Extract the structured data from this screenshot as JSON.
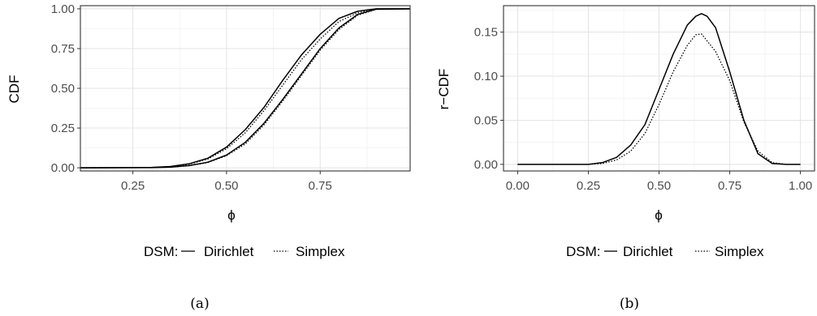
{
  "chart_data": [
    {
      "type": "line",
      "panel_label": "(a)",
      "xlabel": "ϕ",
      "ylabel": "CDF",
      "xlim": [
        0.11,
        0.99
      ],
      "ylim": [
        -0.02,
        1.02
      ],
      "x_ticks": [
        "0.25",
        "0.50",
        "0.75"
      ],
      "x_tick_values": [
        0.25,
        0.5,
        0.75
      ],
      "y_ticks": [
        "0.00",
        "0.25",
        "0.50",
        "0.75",
        "1.00"
      ],
      "y_tick_values": [
        0,
        0.25,
        0.5,
        0.75,
        1.0
      ],
      "grid": true,
      "legend": {
        "title": "DSM:",
        "position": "bottom",
        "entries": [
          "Dirichlet",
          "Simplex"
        ]
      },
      "series": [
        {
          "name": "Dirichlet",
          "style": "solid",
          "x": [
            0.11,
            0.3,
            0.35,
            0.4,
            0.45,
            0.5,
            0.55,
            0.6,
            0.65,
            0.7,
            0.75,
            0.8,
            0.85,
            0.9,
            0.99
          ],
          "y": [
            0.0,
            0.002,
            0.008,
            0.025,
            0.06,
            0.13,
            0.24,
            0.38,
            0.55,
            0.71,
            0.84,
            0.94,
            0.985,
            1.0,
            1.0
          ]
        },
        {
          "name": "Dirichlet",
          "style": "solid",
          "x": [
            0.11,
            0.3,
            0.35,
            0.4,
            0.45,
            0.5,
            0.55,
            0.6,
            0.65,
            0.7,
            0.75,
            0.8,
            0.85,
            0.9,
            0.99
          ],
          "y": [
            0.0,
            0.001,
            0.004,
            0.014,
            0.035,
            0.08,
            0.16,
            0.28,
            0.43,
            0.59,
            0.75,
            0.88,
            0.965,
            0.998,
            1.0
          ]
        },
        {
          "name": "Simplex",
          "style": "dotted",
          "x": [
            0.11,
            0.3,
            0.35,
            0.4,
            0.45,
            0.5,
            0.55,
            0.6,
            0.65,
            0.7,
            0.75,
            0.8,
            0.85,
            0.9,
            0.99
          ],
          "y": [
            0.0,
            0.002,
            0.007,
            0.022,
            0.055,
            0.12,
            0.22,
            0.36,
            0.52,
            0.68,
            0.81,
            0.92,
            0.975,
            0.999,
            1.0
          ]
        },
        {
          "name": "Simplex",
          "style": "dotted",
          "x": [
            0.11,
            0.3,
            0.35,
            0.4,
            0.45,
            0.5,
            0.55,
            0.6,
            0.65,
            0.7,
            0.75,
            0.8,
            0.85,
            0.9,
            0.99
          ],
          "y": [
            0.0,
            0.001,
            0.004,
            0.013,
            0.033,
            0.076,
            0.15,
            0.27,
            0.42,
            0.58,
            0.74,
            0.87,
            0.96,
            0.997,
            1.0
          ]
        }
      ]
    },
    {
      "type": "line",
      "panel_label": "(b)",
      "xlabel": "ϕ",
      "ylabel": "r−CDF",
      "xlim": [
        -0.05,
        1.05
      ],
      "ylim": [
        -0.0075,
        0.18
      ],
      "x_ticks": [
        "0.00",
        "0.25",
        "0.50",
        "0.75",
        "1.00"
      ],
      "x_tick_values": [
        0,
        0.25,
        0.5,
        0.75,
        1.0
      ],
      "y_ticks": [
        "0.00",
        "0.05",
        "0.10",
        "0.15"
      ],
      "y_tick_values": [
        0,
        0.05,
        0.1,
        0.15
      ],
      "grid": true,
      "legend": {
        "title": "DSM:",
        "position": "bottom",
        "entries": [
          "Dirichlet",
          "Simplex"
        ]
      },
      "series": [
        {
          "name": "Dirichlet",
          "style": "solid",
          "x": [
            0.0,
            0.25,
            0.3,
            0.35,
            0.4,
            0.45,
            0.5,
            0.55,
            0.6,
            0.63,
            0.65,
            0.67,
            0.7,
            0.75,
            0.8,
            0.85,
            0.9,
            0.95,
            1.0
          ],
          "y": [
            0.0,
            0.0,
            0.002,
            0.008,
            0.022,
            0.045,
            0.085,
            0.125,
            0.158,
            0.168,
            0.171,
            0.168,
            0.155,
            0.105,
            0.05,
            0.012,
            0.001,
            0.0,
            0.0
          ]
        },
        {
          "name": "Simplex",
          "style": "dotted",
          "x": [
            0.0,
            0.25,
            0.3,
            0.35,
            0.4,
            0.45,
            0.5,
            0.55,
            0.6,
            0.63,
            0.65,
            0.67,
            0.7,
            0.75,
            0.8,
            0.85,
            0.9,
            0.95,
            1.0
          ],
          "y": [
            0.0,
            0.0,
            0.001,
            0.005,
            0.015,
            0.035,
            0.068,
            0.105,
            0.135,
            0.147,
            0.148,
            0.14,
            0.128,
            0.095,
            0.048,
            0.015,
            0.002,
            0.0,
            0.0
          ]
        }
      ]
    }
  ]
}
